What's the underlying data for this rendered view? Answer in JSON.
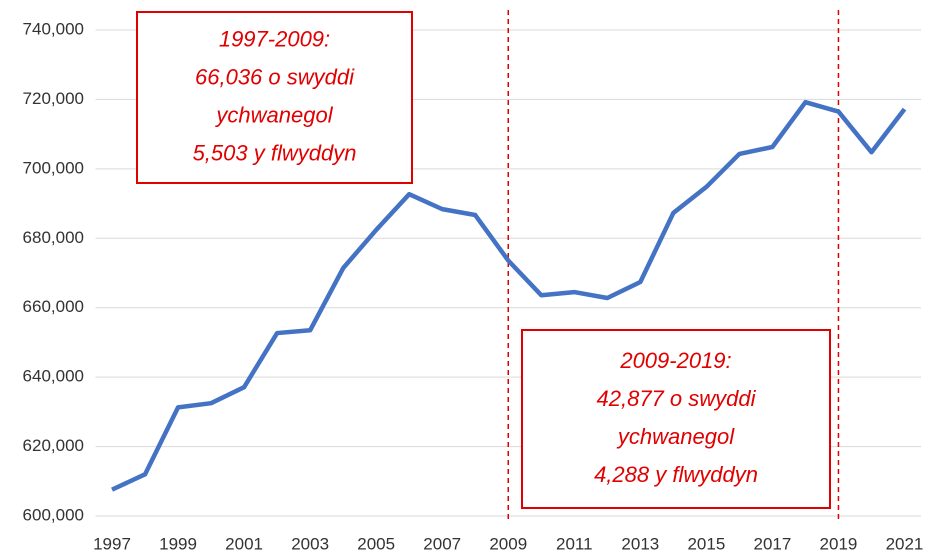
{
  "chart_data": {
    "type": "line",
    "x": [
      1997,
      1998,
      1999,
      2000,
      2001,
      2002,
      2003,
      2004,
      2005,
      2006,
      2007,
      2008,
      2009,
      2010,
      2011,
      2012,
      2013,
      2014,
      2015,
      2016,
      2017,
      2018,
      2019,
      2020,
      2021
    ],
    "series": [
      {
        "color": "#4472c4",
        "values": [
          607600,
          612000,
          631300,
          632500,
          637100,
          652700,
          653500,
          671400,
          682400,
          692700,
          688400,
          686700,
          673600,
          663600,
          664500,
          662800,
          667400,
          687300,
          694800,
          704300,
          706300,
          719200,
          716500,
          704800,
          717200
        ]
      }
    ],
    "xlim": [
      1996.5,
      2021.5
    ],
    "xticks": [
      1997,
      1999,
      2001,
      2003,
      2005,
      2007,
      2009,
      2011,
      2013,
      2015,
      2017,
      2019,
      2021
    ],
    "ylim": [
      600000,
      740000
    ],
    "yticks": [
      {
        "value": 600000,
        "label": "600,000"
      },
      {
        "value": 620000,
        "label": "620,000"
      },
      {
        "value": 640000,
        "label": "640,000"
      },
      {
        "value": 660000,
        "label": "660,000"
      },
      {
        "value": 680000,
        "label": "680,000"
      },
      {
        "value": 700000,
        "label": "700,000"
      },
      {
        "value": 720000,
        "label": "720,000"
      },
      {
        "value": 740000,
        "label": "740,000"
      }
    ],
    "grid": true,
    "vlines": [
      2009,
      2019
    ],
    "annotation_color": "#e00000",
    "annotations": [
      {
        "lines": [
          "1997-2009:",
          "66,036 o swyddi",
          "ychwanegol",
          "5,503 y flwyddyn"
        ]
      },
      {
        "lines": [
          "2009-2019:",
          "42,877 o swyddi",
          "ychwanegol",
          "4,288 y flwyddyn"
        ]
      }
    ]
  }
}
